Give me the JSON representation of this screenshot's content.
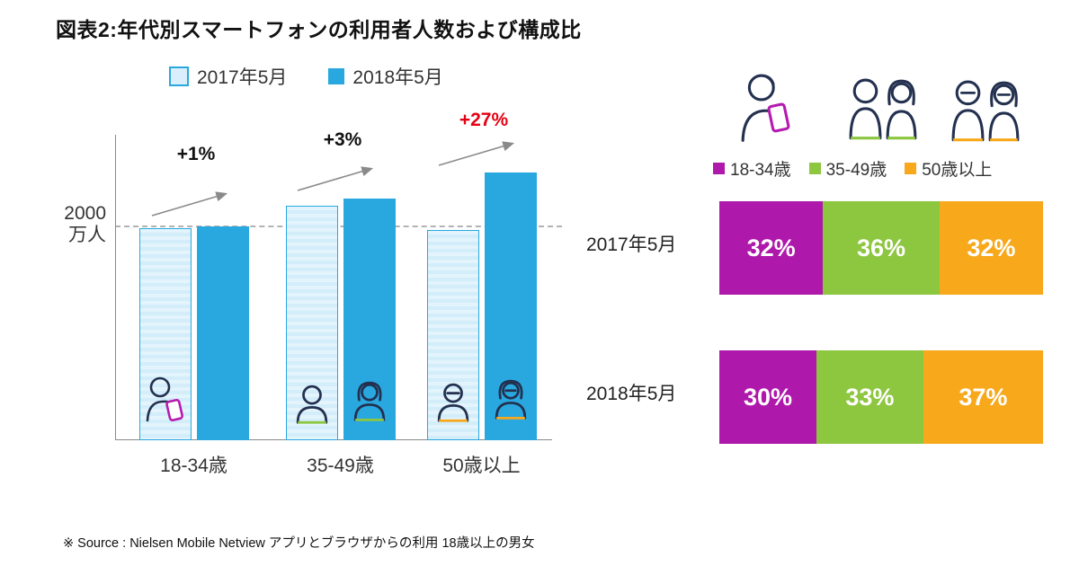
{
  "title": "図表2:年代別スマートフォンの利用者人数および構成比",
  "source": "※ Source : Nielsen Mobile Netview アプリとブラウザからの利用 18歳以上の男女",
  "colors": {
    "bar_2017_fill": "#daeffb",
    "bar_2017_border": "#29a8e0",
    "bar_2018": "#29a8e0",
    "age_18_34": "#ae18ab",
    "age_35_49": "#8dc63f",
    "age_50_plus": "#f7a81b",
    "growth_highlight_red": "#e60012"
  },
  "bar_chart": {
    "legend": {
      "y2017": "2017年5月",
      "y2018": "2018年5月"
    },
    "ref_label_line1": "2000",
    "ref_label_line2": "万人",
    "groups": [
      {
        "category": "18-34歳",
        "growth": "+1%",
        "v2017": 1980,
        "v2018": 2000
      },
      {
        "category": "35-49歳",
        "growth": "+3%",
        "v2017": 2190,
        "v2018": 2260
      },
      {
        "category": "50歳以上",
        "growth": "+27%",
        "v2017": 1970,
        "v2018": 2500
      }
    ]
  },
  "composition": {
    "legend": [
      {
        "label": "18-34歳"
      },
      {
        "label": "35-49歳"
      },
      {
        "label": "50歳以上"
      }
    ],
    "rows": [
      {
        "label": "2017年5月",
        "segments": [
          {
            "pct": 32,
            "text": "32%"
          },
          {
            "pct": 36,
            "text": "36%"
          },
          {
            "pct": 32,
            "text": "32%"
          }
        ]
      },
      {
        "label": "2018年5月",
        "segments": [
          {
            "pct": 30,
            "text": "30%"
          },
          {
            "pct": 33,
            "text": "33%"
          },
          {
            "pct": 37,
            "text": "37%"
          }
        ]
      }
    ]
  },
  "chart_data": [
    {
      "type": "bar",
      "title": "年代別スマートフォンの利用者人数",
      "categories": [
        "18-34歳",
        "35-49歳",
        "50歳以上"
      ],
      "series": [
        {
          "name": "2017年5月",
          "values": [
            1980,
            2190,
            1970
          ]
        },
        {
          "name": "2018年5月",
          "values": [
            2000,
            2260,
            2500
          ]
        }
      ],
      "annotations": [
        "+1%",
        "+3%",
        "+27%"
      ],
      "reference_line": 2000,
      "unit": "万人",
      "ylim": [
        0,
        2800
      ],
      "legend_position": "top",
      "grid": false
    },
    {
      "type": "bar",
      "subtype": "stacked-horizontal-100pct",
      "title": "構成比",
      "categories": [
        "2017年5月",
        "2018年5月"
      ],
      "series": [
        {
          "name": "18-34歳",
          "values": [
            32,
            30
          ]
        },
        {
          "name": "35-49歳",
          "values": [
            36,
            33
          ]
        },
        {
          "name": "50歳以上",
          "values": [
            32,
            37
          ]
        }
      ],
      "unit": "%",
      "legend_position": "top"
    }
  ]
}
